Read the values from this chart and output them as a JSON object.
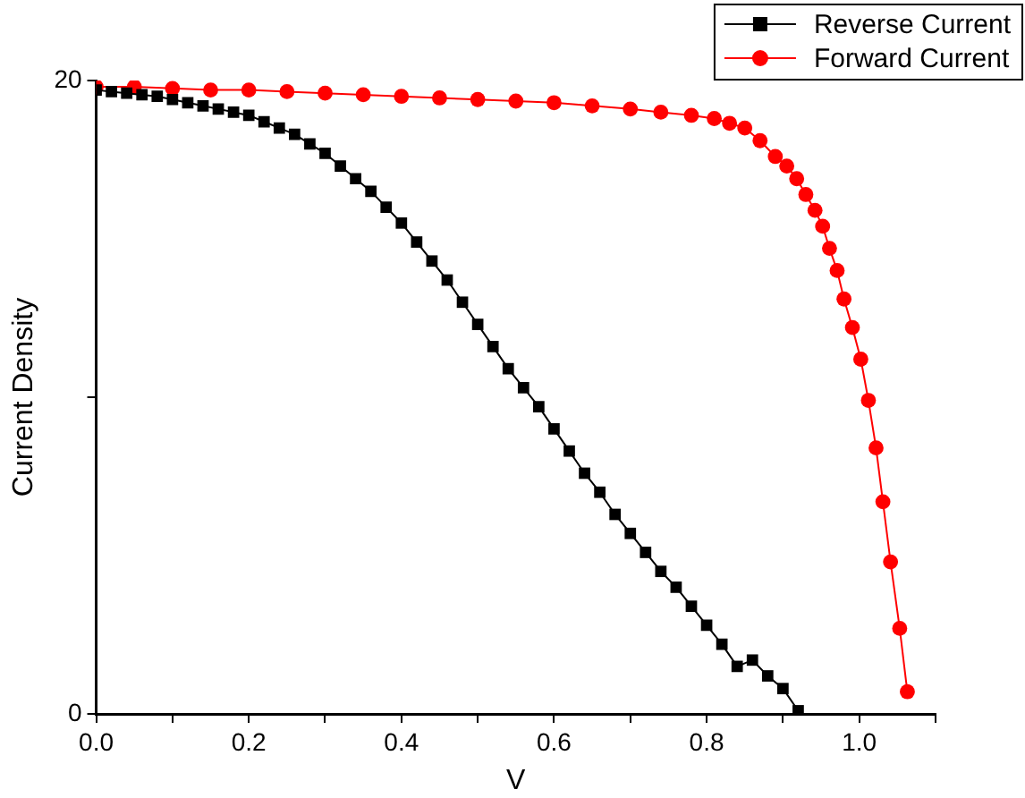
{
  "chart_data": {
    "type": "line",
    "xlabel": "V",
    "ylabel": "Current Density",
    "xlim": [
      0,
      1.1
    ],
    "xticks": [
      {
        "value": 0,
        "label": "0.0"
      },
      {
        "value": 0.1,
        "label": null
      },
      {
        "value": 0.2,
        "label": "0.2"
      },
      {
        "value": 0.3,
        "label": null
      },
      {
        "value": 0.4,
        "label": "0.4"
      },
      {
        "value": 0.5,
        "label": null
      },
      {
        "value": 0.6,
        "label": "0.6"
      },
      {
        "value": 0.7,
        "label": null
      },
      {
        "value": 0.8,
        "label": "0.8"
      },
      {
        "value": 0.9,
        "label": null
      },
      {
        "value": 1.0,
        "label": "1.0"
      },
      {
        "value": 1.1,
        "label": null
      }
    ],
    "ylim": [
      0,
      20
    ],
    "yticks": [
      0,
      {
        "value": 10,
        "label": null
      },
      20
    ],
    "grid": false,
    "legend": "top right",
    "line_style": "solid",
    "series": [
      {
        "name": "Reverse Current",
        "color": "#000000",
        "marker": "square",
        "x": [
          0,
          0.02,
          0.04,
          0.06,
          0.08,
          0.1,
          0.12,
          0.14,
          0.16,
          0.18,
          0.2,
          0.22,
          0.24,
          0.26,
          0.28,
          0.3,
          0.32,
          0.34,
          0.36,
          0.38,
          0.4,
          0.42,
          0.44,
          0.46,
          0.48,
          0.5,
          0.52,
          0.54,
          0.56,
          0.58,
          0.6,
          0.62,
          0.64,
          0.66,
          0.68,
          0.7,
          0.72,
          0.74,
          0.76,
          0.78,
          0.8,
          0.82,
          0.84,
          0.86,
          0.88,
          0.9,
          0.92
        ],
        "values": [
          19.7,
          19.65,
          19.6,
          19.55,
          19.5,
          19.4,
          19.3,
          19.2,
          19.1,
          19.0,
          18.9,
          18.7,
          18.5,
          18.3,
          18.0,
          17.7,
          17.3,
          16.9,
          16.5,
          16.0,
          15.5,
          14.9,
          14.3,
          13.7,
          13.0,
          12.3,
          11.6,
          10.9,
          10.3,
          9.7,
          9.0,
          8.3,
          7.6,
          7.0,
          6.3,
          5.7,
          5.1,
          4.5,
          4.0,
          3.4,
          2.8,
          2.2,
          1.5,
          1.7,
          1.2,
          0.8,
          0.1
        ]
      },
      {
        "name": "Forward Current",
        "color": "#ff0000",
        "marker": "circle",
        "x": [
          0,
          0.05,
          0.1,
          0.15,
          0.2,
          0.25,
          0.3,
          0.35,
          0.4,
          0.45,
          0.5,
          0.55,
          0.6,
          0.65,
          0.7,
          0.74,
          0.78,
          0.81,
          0.83,
          0.85,
          0.87,
          0.89,
          0.905,
          0.918,
          0.93,
          0.942,
          0.952,
          0.961,
          0.971,
          0.98,
          0.991,
          1.002,
          1.012,
          1.022,
          1.031,
          1.041,
          1.053,
          1.063
        ],
        "values": [
          19.8,
          19.8,
          19.75,
          19.7,
          19.7,
          19.65,
          19.6,
          19.55,
          19.5,
          19.45,
          19.4,
          19.35,
          19.3,
          19.2,
          19.1,
          19.0,
          18.9,
          18.8,
          18.65,
          18.5,
          18.1,
          17.6,
          17.3,
          16.9,
          16.4,
          15.9,
          15.4,
          14.7,
          14.0,
          13.1,
          12.2,
          11.2,
          9.9,
          8.4,
          6.7,
          4.8,
          2.7,
          0.7
        ]
      }
    ]
  }
}
